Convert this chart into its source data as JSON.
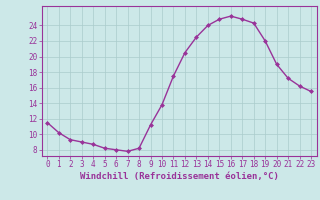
{
  "x": [
    0,
    1,
    2,
    3,
    4,
    5,
    6,
    7,
    8,
    9,
    10,
    11,
    12,
    13,
    14,
    15,
    16,
    17,
    18,
    19,
    20,
    21,
    22,
    23
  ],
  "y": [
    11.5,
    10.2,
    9.3,
    9.0,
    8.7,
    8.2,
    8.0,
    7.8,
    8.2,
    11.2,
    13.8,
    17.5,
    20.5,
    22.5,
    24.0,
    24.8,
    25.2,
    24.8,
    24.3,
    22.0,
    19.0,
    17.2,
    16.2,
    15.5
  ],
  "line_color": "#993399",
  "marker": "D",
  "marker_size": 2.0,
  "linewidth": 1.0,
  "bg_color": "#cce8e8",
  "grid_color": "#aacccc",
  "xlabel": "Windchill (Refroidissement éolien,°C)",
  "ylabel_ticks": [
    8,
    10,
    12,
    14,
    16,
    18,
    20,
    22,
    24
  ],
  "xlim": [
    -0.5,
    23.5
  ],
  "ylim": [
    7.2,
    26.5
  ],
  "xtick_labels": [
    "0",
    "1",
    "2",
    "3",
    "4",
    "5",
    "6",
    "7",
    "8",
    "9",
    "10",
    "11",
    "12",
    "13",
    "14",
    "15",
    "16",
    "17",
    "18",
    "19",
    "20",
    "21",
    "22",
    "23"
  ],
  "tick_color": "#993399",
  "tick_fontsize": 5.5,
  "xlabel_fontsize": 6.5
}
